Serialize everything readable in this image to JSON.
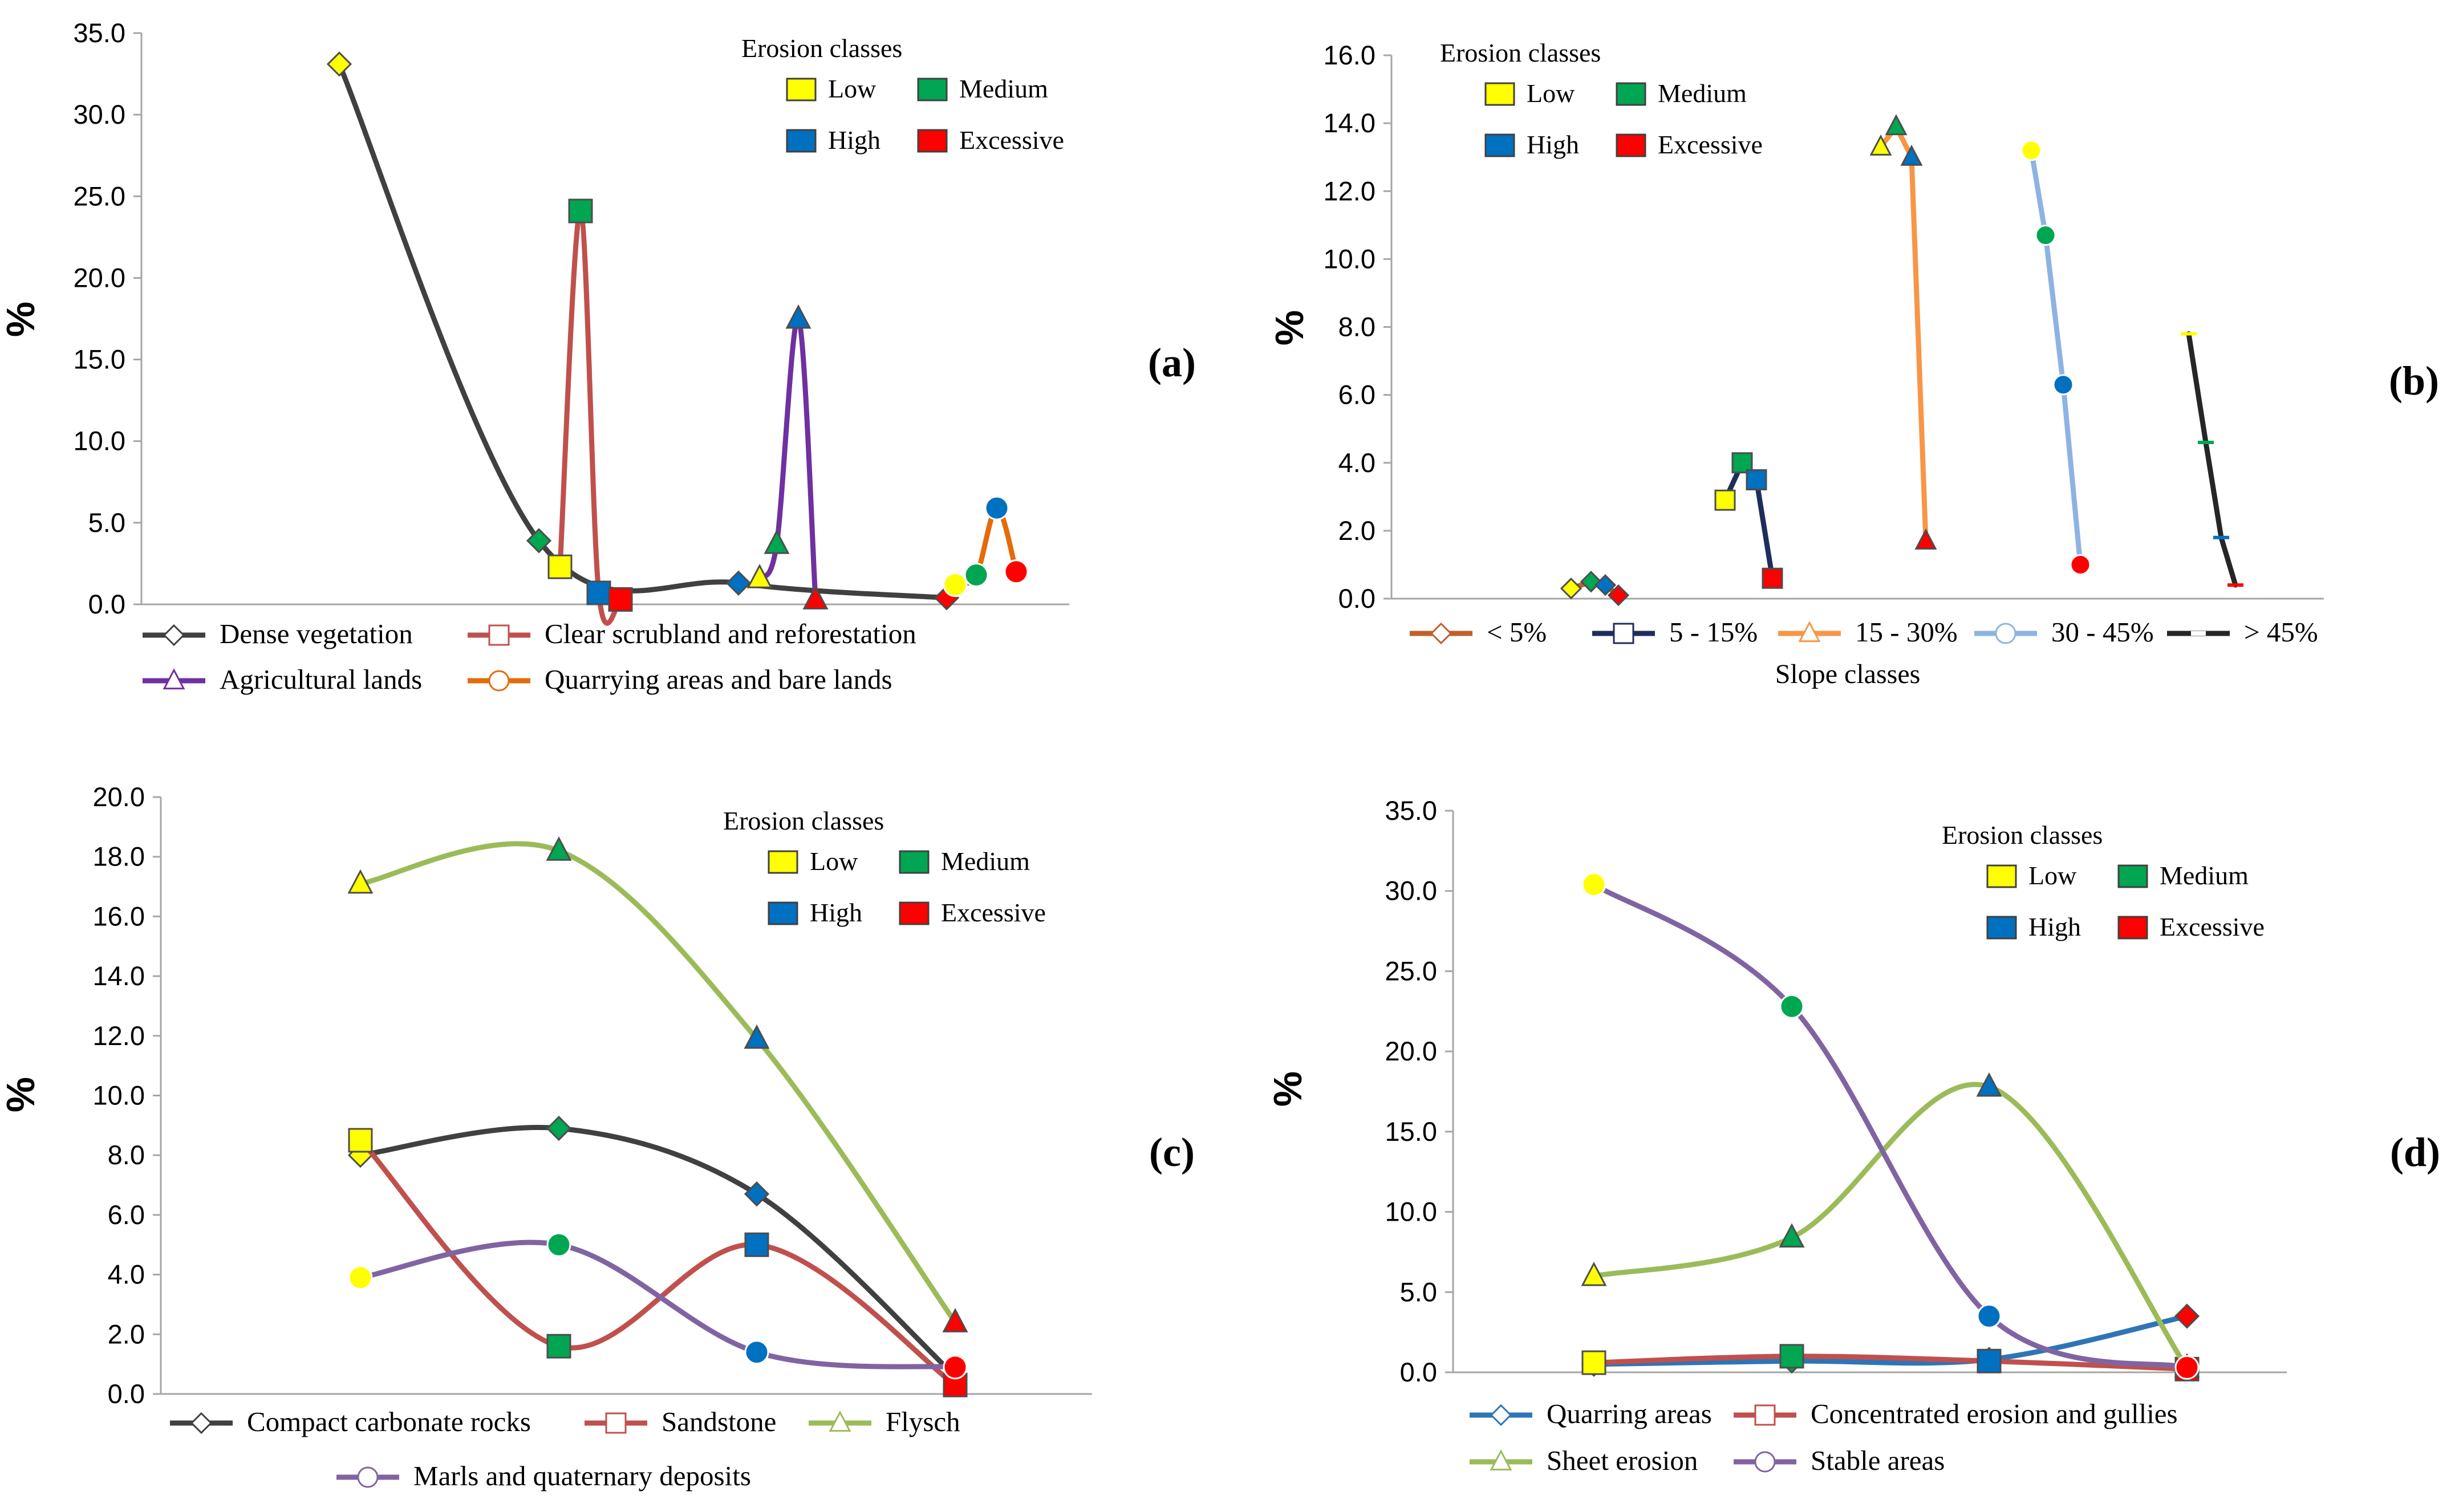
{
  "figure": {
    "erosion_classes_title": "Erosion classes",
    "erosion_class_labels": [
      "Low",
      "Medium",
      "High",
      "Excessive"
    ],
    "erosion_class_colors": [
      "#ffff00",
      "#00a651",
      "#0070c0",
      "#ff0000"
    ]
  },
  "chart_data": [
    {
      "panel": "(a)",
      "type": "line",
      "title": "",
      "ylabel": "%",
      "xlabel": "",
      "ylim": [
        0,
        35
      ],
      "yticks": [
        "0.0",
        "5.0",
        "10.0",
        "15.0",
        "20.0",
        "25.0",
        "30.0",
        "35.0"
      ],
      "categories": [
        "Low",
        "Medium",
        "High",
        "Excessive"
      ],
      "series": [
        {
          "name": "Dense vegetation",
          "color": "#404040",
          "marker": "diamond",
          "values": [
            33.1,
            3.9,
            1.3,
            0.4
          ]
        },
        {
          "name": "Clear scrubland and reforestation",
          "color": "#c0504d",
          "marker": "square",
          "values": [
            2.3,
            24.1,
            0.7,
            0.3
          ]
        },
        {
          "name": "Agricultural lands",
          "color": "#7030a0",
          "marker": "triangle",
          "values": [
            1.6,
            3.7,
            17.5,
            0.3
          ]
        },
        {
          "name": "Quarrying areas and bare lands",
          "color": "#e36c09",
          "marker": "circle",
          "values": [
            1.2,
            1.8,
            5.9,
            2.0
          ]
        }
      ]
    },
    {
      "panel": "(b)",
      "type": "line",
      "title": "",
      "ylabel": "%",
      "xlabel": "Slope classes",
      "ylim": [
        0,
        16
      ],
      "yticks": [
        "0.0",
        "2.0",
        "4.0",
        "6.0",
        "8.0",
        "10.0",
        "12.0",
        "14.0",
        "16.0"
      ],
      "categories": [
        "Low",
        "Medium",
        "High",
        "Excessive"
      ],
      "series": [
        {
          "name": "< 5%",
          "color": "#c0602a",
          "marker": "diamond",
          "values": [
            0.3,
            0.5,
            0.4,
            0.1
          ]
        },
        {
          "name": "5 - 15%",
          "color": "#1f2d5c",
          "marker": "square",
          "values": [
            2.9,
            4.0,
            3.5,
            0.6
          ]
        },
        {
          "name": "15 - 30%",
          "color": "#f79646",
          "marker": "triangle",
          "values": [
            13.3,
            13.9,
            13.0,
            1.7
          ]
        },
        {
          "name": "30 - 45%",
          "color": "#8db3e2",
          "marker": "circle",
          "values": [
            13.2,
            10.7,
            6.3,
            1.0
          ]
        },
        {
          "name": "> 45%",
          "color": "#262626",
          "marker": "dash",
          "values": [
            7.8,
            4.6,
            1.8,
            0.4
          ]
        }
      ]
    },
    {
      "panel": "(c)",
      "type": "line",
      "title": "",
      "ylabel": "%",
      "xlabel": "",
      "ylim": [
        0,
        20
      ],
      "yticks": [
        "0.0",
        "2.0",
        "4.0",
        "6.0",
        "8.0",
        "10.0",
        "12.0",
        "14.0",
        "16.0",
        "18.0",
        "20.0"
      ],
      "categories": [
        "Low",
        "Medium",
        "High",
        "Excessive"
      ],
      "series": [
        {
          "name": "Compact carbonate rocks",
          "color": "#404040",
          "marker": "diamond",
          "values": [
            8.0,
            8.9,
            6.7,
            0.6
          ]
        },
        {
          "name": "Sandstone",
          "color": "#c0504d",
          "marker": "square",
          "values": [
            8.5,
            1.6,
            5.0,
            0.3
          ]
        },
        {
          "name": "Flysch",
          "color": "#9bbb59",
          "marker": "triangle",
          "values": [
            17.1,
            18.2,
            11.9,
            2.4
          ]
        },
        {
          "name": "Marls and quaternary deposits",
          "color": "#8064a2",
          "marker": "circle",
          "values": [
            3.9,
            5.0,
            1.4,
            0.9
          ]
        }
      ]
    },
    {
      "panel": "(d)",
      "type": "line",
      "title": "",
      "ylabel": "%",
      "xlabel": "",
      "ylim": [
        0,
        35
      ],
      "yticks": [
        "0.0",
        "5.0",
        "10.0",
        "15.0",
        "20.0",
        "25.0",
        "30.0",
        "35.0"
      ],
      "categories": [
        "Low",
        "Medium",
        "High",
        "Excessive"
      ],
      "series": [
        {
          "name": "Quarring areas",
          "color": "#2e75b6",
          "marker": "diamond",
          "values": [
            0.5,
            0.7,
            0.8,
            3.5
          ]
        },
        {
          "name": "Concentrated erosion and gullies",
          "color": "#c0504d",
          "marker": "square",
          "values": [
            0.6,
            1.0,
            0.7,
            0.2
          ]
        },
        {
          "name": "Sheet erosion",
          "color": "#9bbb59",
          "marker": "triangle",
          "values": [
            6.0,
            8.4,
            17.8,
            0.3
          ]
        },
        {
          "name": "Stable areas",
          "color": "#8064a2",
          "marker": "circle",
          "values": [
            30.4,
            22.8,
            3.5,
            0.3
          ]
        }
      ]
    }
  ]
}
